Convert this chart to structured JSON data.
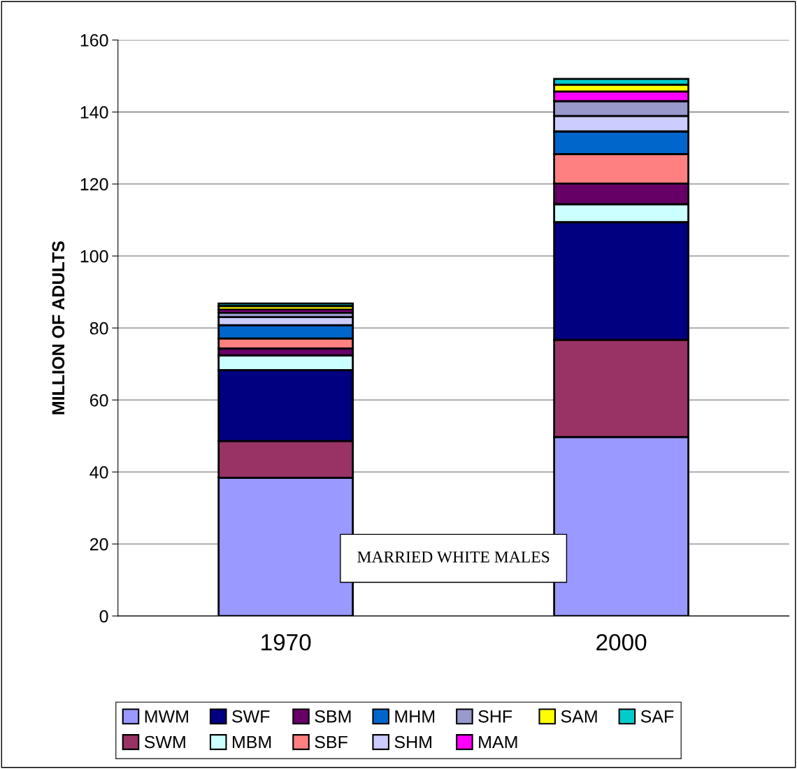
{
  "chart_data": {
    "type": "bar",
    "stacked": true,
    "ylabel": "MILLION OF ADULTS",
    "categories": [
      "1970",
      "2000"
    ],
    "series": [
      {
        "name": "MWM",
        "color": "#9999ff",
        "values": [
          38.4,
          49.7
        ]
      },
      {
        "name": "SWM",
        "color": "#993366",
        "values": [
          10.2,
          27.0
        ]
      },
      {
        "name": "SWF",
        "color": "#000080",
        "values": [
          19.7,
          32.7
        ]
      },
      {
        "name": "MBM",
        "color": "#ccffff",
        "values": [
          4.1,
          5.0
        ]
      },
      {
        "name": "SBM",
        "color": "#660066",
        "values": [
          1.9,
          5.7
        ]
      },
      {
        "name": "SBF",
        "color": "#ff8080",
        "values": [
          2.8,
          8.2
        ]
      },
      {
        "name": "MHM",
        "color": "#0066cc",
        "values": [
          3.7,
          6.3
        ]
      },
      {
        "name": "SHM",
        "color": "#ccccff",
        "values": [
          2.2,
          4.3
        ]
      },
      {
        "name": "SHF",
        "color": "#9999cc",
        "values": [
          1.3,
          4.1
        ]
      },
      {
        "name": "MAM",
        "color": "#ff00ff",
        "values": [
          0.8,
          2.7
        ]
      },
      {
        "name": "SAM",
        "color": "#ffff00",
        "values": [
          1.0,
          1.9
        ]
      },
      {
        "name": "SAF",
        "color": "#00cccc",
        "values": [
          0.7,
          1.6
        ]
      }
    ],
    "ylim": [
      0,
      160
    ],
    "yticks": [
      0,
      20,
      40,
      60,
      80,
      100,
      120,
      140,
      160
    ],
    "grid": "y",
    "legend": "bottom",
    "annotations": [
      "MARRIED WHITE MALES"
    ]
  }
}
